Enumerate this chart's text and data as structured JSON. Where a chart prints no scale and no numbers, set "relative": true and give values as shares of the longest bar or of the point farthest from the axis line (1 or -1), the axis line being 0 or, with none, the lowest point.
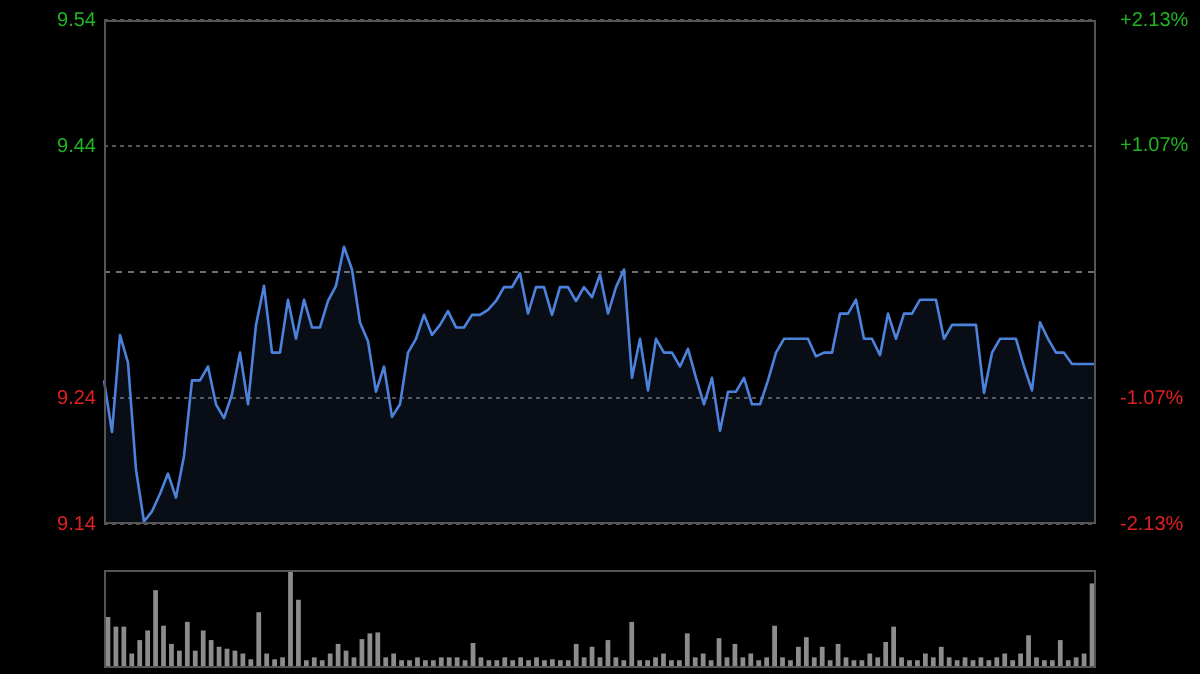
{
  "chart_data": [
    {
      "type": "area",
      "color": "#4d82dc",
      "categories": [
        null,
        null,
        null,
        null,
        null,
        null,
        null,
        null,
        null,
        null,
        null,
        null,
        null,
        null,
        null,
        null,
        null,
        null,
        null,
        null,
        null,
        null,
        null,
        null,
        null,
        null,
        null,
        null,
        null,
        null,
        null,
        null,
        null,
        null,
        null,
        null,
        null,
        null,
        null,
        null,
        null,
        null,
        null,
        null,
        null,
        null,
        null,
        null,
        null,
        null,
        null,
        null,
        null,
        null,
        null,
        null,
        null,
        null,
        null,
        null,
        null,
        null,
        null,
        null,
        null,
        null,
        null,
        null,
        null,
        null,
        null,
        null,
        null,
        null,
        null,
        null,
        null,
        null,
        null,
        null,
        null,
        null,
        null,
        null,
        null,
        null,
        null,
        null,
        null,
        null,
        null,
        null,
        null,
        null,
        null,
        null,
        null,
        null,
        null,
        null,
        null,
        null,
        null,
        null,
        null,
        null,
        null,
        null,
        null,
        null,
        null,
        null,
        null,
        null,
        null,
        null,
        null,
        null,
        null,
        null,
        null,
        null,
        null,
        null,
        null
      ],
      "values": [
        9.254,
        9.213,
        9.29,
        9.268,
        9.183,
        9.142,
        9.15,
        9.164,
        9.18,
        9.161,
        9.194,
        9.254,
        9.254,
        9.265,
        9.235,
        9.224,
        9.243,
        9.276,
        9.235,
        9.298,
        9.329,
        9.276,
        9.276,
        9.318,
        9.287,
        9.318,
        9.296,
        9.296,
        9.317,
        9.329,
        9.36,
        9.342,
        9.3,
        9.285,
        9.245,
        9.265,
        9.225,
        9.235,
        9.276,
        9.287,
        9.306,
        9.29,
        9.298,
        9.309,
        9.296,
        9.296,
        9.306,
        9.306,
        9.31,
        9.317,
        9.328,
        9.328,
        9.339,
        9.307,
        9.328,
        9.328,
        9.306,
        9.328,
        9.328,
        9.317,
        9.328,
        9.32,
        9.338,
        9.307,
        9.328,
        9.342,
        9.256,
        9.287,
        9.246,
        9.287,
        9.276,
        9.276,
        9.265,
        9.279,
        9.256,
        9.235,
        9.256,
        9.214,
        9.245,
        9.245,
        9.256,
        9.235,
        9.235,
        9.254,
        9.276,
        9.287,
        9.287,
        9.287,
        9.287,
        9.273,
        9.276,
        9.276,
        9.307,
        9.307,
        9.318,
        9.287,
        9.287,
        9.274,
        9.307,
        9.287,
        9.307,
        9.307,
        9.318,
        9.318,
        9.318,
        9.287,
        9.298,
        9.298,
        9.298,
        9.298,
        9.244,
        9.276,
        9.287,
        9.287,
        9.287,
        9.265,
        9.246,
        9.3,
        9.287,
        9.276,
        9.276,
        9.267,
        9.267,
        9.267,
        9.267
      ],
      "ylim": [
        9.14,
        9.54
      ],
      "yticks": [
        9.14,
        9.24,
        9.44,
        9.54
      ],
      "y2lim": [
        -2.13,
        2.13
      ],
      "y2ticks": [
        {
          "value": 2.13,
          "label": "+2.13%"
        },
        {
          "value": 1.07,
          "label": "+1.07%"
        },
        {
          "value": -1.07,
          "label": "-1.07%"
        },
        {
          "value": -2.13,
          "label": "-2.13%"
        }
      ],
      "ref_lines": [
        {
          "axis": "y",
          "value": 9.34,
          "color": "#6e6e6e",
          "line_style": "dashed"
        }
      ],
      "grid": "y",
      "marker": "none",
      "legend": false
    },
    {
      "type": "bar",
      "relative": true,
      "color": "#8c8c8c",
      "categories": [
        null,
        null,
        null,
        null,
        null,
        null,
        null,
        null,
        null,
        null,
        null,
        null,
        null,
        null,
        null,
        null,
        null,
        null,
        null,
        null,
        null,
        null,
        null,
        null,
        null,
        null,
        null,
        null,
        null,
        null,
        null,
        null,
        null,
        null,
        null,
        null,
        null,
        null,
        null,
        null,
        null,
        null,
        null,
        null,
        null,
        null,
        null,
        null,
        null,
        null,
        null,
        null,
        null,
        null,
        null,
        null,
        null,
        null,
        null,
        null,
        null,
        null,
        null,
        null,
        null,
        null,
        null,
        null,
        null,
        null,
        null,
        null,
        null,
        null,
        null,
        null,
        null,
        null,
        null,
        null,
        null,
        null,
        null,
        null,
        null,
        null,
        null,
        null,
        null,
        null,
        null,
        null,
        null,
        null,
        null,
        null,
        null,
        null,
        null,
        null,
        null,
        null,
        null,
        null,
        null,
        null,
        null,
        null,
        null,
        null,
        null,
        null,
        null,
        null,
        null,
        null,
        null,
        null,
        null,
        null,
        null,
        null,
        null,
        null,
        null
      ],
      "values": [
        0.51,
        0.41,
        0.41,
        0.13,
        0.27,
        0.37,
        0.79,
        0.42,
        0.23,
        0.16,
        0.46,
        0.16,
        0.37,
        0.27,
        0.2,
        0.18,
        0.16,
        0.13,
        0.07,
        0.56,
        0.13,
        0.07,
        0.09,
        1,
        0.69,
        0.06,
        0.09,
        0.06,
        0.13,
        0.23,
        0.16,
        0.09,
        0.28,
        0.34,
        0.35,
        0.09,
        0.13,
        0.06,
        0.06,
        0.09,
        0.06,
        0.06,
        0.09,
        0.09,
        0.09,
        0.06,
        0.24,
        0.09,
        0.06,
        0.06,
        0.09,
        0.06,
        0.09,
        0.06,
        0.09,
        0.06,
        0.07,
        0.06,
        0.06,
        0.23,
        0.09,
        0.2,
        0.09,
        0.27,
        0.09,
        0.06,
        0.46,
        0.06,
        0.06,
        0.09,
        0.13,
        0.06,
        0.06,
        0.34,
        0.09,
        0.13,
        0.06,
        0.29,
        0.09,
        0.23,
        0.09,
        0.13,
        0.06,
        0.09,
        0.42,
        0.09,
        0.06,
        0.2,
        0.3,
        0.09,
        0.2,
        0.06,
        0.23,
        0.09,
        0.06,
        0.06,
        0.13,
        0.09,
        0.25,
        0.41,
        0.09,
        0.06,
        0.06,
        0.13,
        0.09,
        0.2,
        0.09,
        0.06,
        0.09,
        0.06,
        0.09,
        0.06,
        0.09,
        0.13,
        0.06,
        0.13,
        0.32,
        0.09,
        0.06,
        0.06,
        0.27,
        0.06,
        0.09,
        0.13,
        0.86
      ],
      "grid": false,
      "legend": false
    }
  ]
}
